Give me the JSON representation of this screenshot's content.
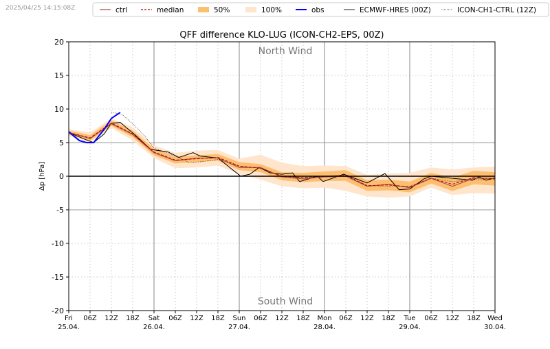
{
  "timestamp": "2025/04/25 14:15:08Z",
  "legend": {
    "ctrl": "ctrl",
    "median": "median",
    "p50": "50%",
    "p100": "100%",
    "obs": "obs",
    "ecmwf": "ECMWF-HRES (00Z)",
    "ch1": "ICON-CH1-CTRL (12Z)"
  },
  "colors": {
    "ctrl": "#b05050",
    "median": "#b00000",
    "band50": "#fdbf6f",
    "band100": "#fee5cc",
    "obs": "#0000ff",
    "ecmwf": "#000000",
    "ch1": "#333333"
  },
  "chart_data": {
    "type": "line",
    "title": "QFF difference KLO-LUG (ICON-CH2-EPS, 00Z)",
    "ylabel": "Δp [hPa]",
    "xlabel": "",
    "ylim": [
      -20,
      20
    ],
    "xlim_hours": [
      0,
      120
    ],
    "yticks": [
      -20,
      -15,
      -10,
      -5,
      0,
      5,
      10,
      15,
      20
    ],
    "grid": true,
    "legend_position": "top (outside)",
    "annotations": {
      "north": "North Wind",
      "south": "South Wind"
    },
    "day_labels": [
      {
        "day": "Fri",
        "date": "25.04."
      },
      {
        "day": "Sat",
        "date": "26.04."
      },
      {
        "day": "Sun",
        "date": "27.04."
      },
      {
        "day": "Mon",
        "date": "28.04."
      },
      {
        "day": "Tue",
        "date": "29.04."
      },
      {
        "day": "Wed",
        "date": "30.04."
      }
    ],
    "hour_labels": [
      "06Z",
      "12Z",
      "18Z"
    ],
    "x_hours": [
      0,
      6,
      12,
      18,
      24,
      30,
      36,
      42,
      48,
      54,
      60,
      66,
      72,
      78,
      84,
      90,
      96,
      102,
      108,
      114,
      120
    ],
    "median": [
      6.5,
      5.7,
      7.9,
      6.3,
      3.6,
      2.4,
      2.6,
      2.8,
      1.5,
      1.2,
      0.0,
      -0.2,
      0.0,
      0.1,
      -1.4,
      -1.3,
      -1.6,
      -0.3,
      -1.2,
      -0.2,
      -0.4
    ],
    "ctrl": [
      6.5,
      5.6,
      7.8,
      6.2,
      3.5,
      2.3,
      2.7,
      2.7,
      1.3,
      1.3,
      -0.1,
      -0.4,
      -0.1,
      0.0,
      -1.5,
      -1.2,
      -1.7,
      -0.3,
      -1.5,
      -0.3,
      -0.3
    ],
    "p25": [
      6.2,
      5.3,
      7.5,
      5.8,
      3.1,
      1.9,
      2.1,
      2.3,
      0.9,
      0.6,
      -0.6,
      -0.9,
      -0.7,
      -0.7,
      -2.2,
      -2.1,
      -2.4,
      -1.1,
      -2.2,
      -1.2,
      -1.4
    ],
    "p75": [
      6.8,
      6.1,
      8.3,
      6.8,
      4.1,
      2.9,
      3.1,
      3.3,
      2.1,
      1.8,
      0.6,
      0.5,
      0.7,
      0.9,
      -0.6,
      -0.5,
      -0.8,
      0.5,
      -0.2,
      0.8,
      0.6
    ],
    "min": [
      6.0,
      5.0,
      7.2,
      5.3,
      2.7,
      1.2,
      1.3,
      1.6,
      0.3,
      -0.5,
      -1.5,
      -1.8,
      -1.7,
      -2.2,
      -3.0,
      -3.2,
      -3.0,
      -1.7,
      -2.8,
      -2.5,
      -2.6
    ],
    "max": [
      7.0,
      6.5,
      8.6,
      7.3,
      4.6,
      3.5,
      3.8,
      3.9,
      2.6,
      3.2,
      2.0,
      1.5,
      1.6,
      1.5,
      0.2,
      0.4,
      0.5,
      1.3,
      1.0,
      1.3,
      1.4
    ],
    "obs": [
      [
        0,
        6.6
      ],
      [
        3,
        5.3
      ],
      [
        5,
        5.0
      ],
      [
        7,
        5.0
      ],
      [
        10,
        7.0
      ],
      [
        12,
        8.6
      ],
      [
        14.5,
        9.5
      ]
    ],
    "ecmwf": [
      [
        0,
        6.5
      ],
      [
        5,
        5.4
      ],
      [
        7,
        5.0
      ],
      [
        10,
        6.3
      ],
      [
        12,
        7.9
      ],
      [
        14.5,
        8.0
      ],
      [
        19,
        6.0
      ],
      [
        23,
        4.0
      ],
      [
        28,
        3.6
      ],
      [
        31,
        2.8
      ],
      [
        35,
        3.5
      ],
      [
        37,
        3.0
      ],
      [
        42,
        2.7
      ],
      [
        48.4,
        0.0
      ],
      [
        51,
        0.3
      ],
      [
        53.6,
        1.3
      ],
      [
        56.7,
        0.5
      ],
      [
        60,
        0.3
      ],
      [
        63,
        0.5
      ],
      [
        65,
        -0.8
      ],
      [
        70,
        0.0
      ],
      [
        71.6,
        -0.8
      ],
      [
        77.4,
        0.3
      ],
      [
        84,
        -1.0
      ],
      [
        86.5,
        -0.3
      ],
      [
        89,
        0.4
      ],
      [
        93,
        -2.0
      ],
      [
        96,
        -1.9
      ],
      [
        100,
        -0.4
      ],
      [
        102,
        0.0
      ],
      [
        113.6,
        -0.6
      ],
      [
        115.5,
        -0.1
      ],
      [
        117.5,
        -0.6
      ],
      [
        120,
        -0.2
      ]
    ],
    "ch1": [
      [
        12,
        9.5
      ],
      [
        15,
        9.2
      ],
      [
        18,
        7.8
      ],
      [
        21,
        6.2
      ],
      [
        24,
        4.2
      ],
      [
        30,
        3.0
      ],
      [
        34,
        2.0
      ],
      [
        38,
        2.2
      ],
      [
        42,
        2.5
      ],
      [
        48,
        1.5
      ],
      [
        54,
        1.2
      ],
      [
        60,
        0.0
      ],
      [
        66,
        -0.3
      ],
      [
        72,
        0.0
      ],
      [
        78,
        0.2
      ],
      [
        84,
        -1.4
      ],
      [
        90,
        -1.5
      ],
      [
        96,
        -1.5
      ],
      [
        102,
        -0.3
      ],
      [
        108,
        -0.8
      ],
      [
        114,
        -0.5
      ],
      [
        120,
        -0.5
      ]
    ]
  }
}
